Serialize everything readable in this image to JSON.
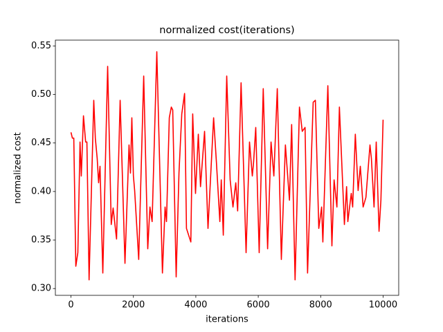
{
  "chart_data": {
    "type": "line",
    "title": "normalized cost(iterations)",
    "x_label": "iterations",
    "y_label": "normalized cost",
    "xlim": [
      -500,
      10500
    ],
    "ylim": [
      0.293,
      0.556
    ],
    "xticks": [
      0,
      2000,
      4000,
      6000,
      8000,
      10000
    ],
    "yticks": [
      {
        "value": 0.3,
        "label": "0.30"
      },
      0.35,
      {
        "value": 0.4,
        "label": "0.40"
      },
      0.45,
      {
        "value": 0.5,
        "label": "0.50"
      },
      0.55
    ],
    "x": [
      0,
      45,
      90,
      155,
      220,
      290,
      330,
      400,
      470,
      510,
      580,
      730,
      780,
      840,
      885,
      930,
      1020,
      1175,
      1290,
      1350,
      1460,
      1575,
      1730,
      1860,
      1905,
      1950,
      2000,
      2040,
      2170,
      2330,
      2460,
      2530,
      2600,
      2750,
      2930,
      3015,
      3060,
      3150,
      3215,
      3260,
      3370,
      3460,
      3550,
      3640,
      3700,
      3840,
      3900,
      3990,
      4080,
      4150,
      4280,
      4390,
      4570,
      4660,
      4770,
      4815,
      4880,
      4990,
      5100,
      5190,
      5280,
      5340,
      5450,
      5610,
      5720,
      5810,
      5850,
      5920,
      6030,
      6160,
      6300,
      6410,
      6500,
      6610,
      6740,
      6870,
      7000,
      7070,
      7180,
      7320,
      7410,
      7500,
      7580,
      7760,
      7830,
      7940,
      8030,
      8070,
      8230,
      8360,
      8430,
      8520,
      8600,
      8760,
      8830,
      8870,
      8980,
      9025,
      9110,
      9200,
      9270,
      9360,
      9450,
      9580,
      9625,
      9710,
      9780,
      9870,
      9930,
      10000
    ],
    "series": [
      {
        "name": "normalized cost",
        "color": "#ff0000",
        "values": [
          0.461,
          0.455,
          0.455,
          0.323,
          0.337,
          0.451,
          0.416,
          0.478,
          0.451,
          0.451,
          0.309,
          0.494,
          0.455,
          0.434,
          0.409,
          0.426,
          0.316,
          0.529,
          0.366,
          0.383,
          0.351,
          0.494,
          0.326,
          0.448,
          0.419,
          0.476,
          0.416,
          0.401,
          0.33,
          0.519,
          0.341,
          0.384,
          0.369,
          0.544,
          0.316,
          0.384,
          0.369,
          0.476,
          0.487,
          0.484,
          0.312,
          0.419,
          0.48,
          0.501,
          0.362,
          0.348,
          0.48,
          0.398,
          0.459,
          0.405,
          0.462,
          0.362,
          0.476,
          0.43,
          0.369,
          0.412,
          0.355,
          0.519,
          0.412,
          0.384,
          0.409,
          0.38,
          0.512,
          0.337,
          0.451,
          0.416,
          0.43,
          0.466,
          0.337,
          0.506,
          0.341,
          0.451,
          0.416,
          0.506,
          0.33,
          0.448,
          0.391,
          0.469,
          0.309,
          0.487,
          0.462,
          0.466,
          0.316,
          0.492,
          0.494,
          0.362,
          0.384,
          0.348,
          0.509,
          0.344,
          0.412,
          0.384,
          0.487,
          0.366,
          0.405,
          0.369,
          0.398,
          0.384,
          0.459,
          0.401,
          0.426,
          0.384,
          0.394,
          0.448,
          0.434,
          0.384,
          0.451,
          0.359,
          0.391,
          0.474
        ]
      }
    ]
  }
}
